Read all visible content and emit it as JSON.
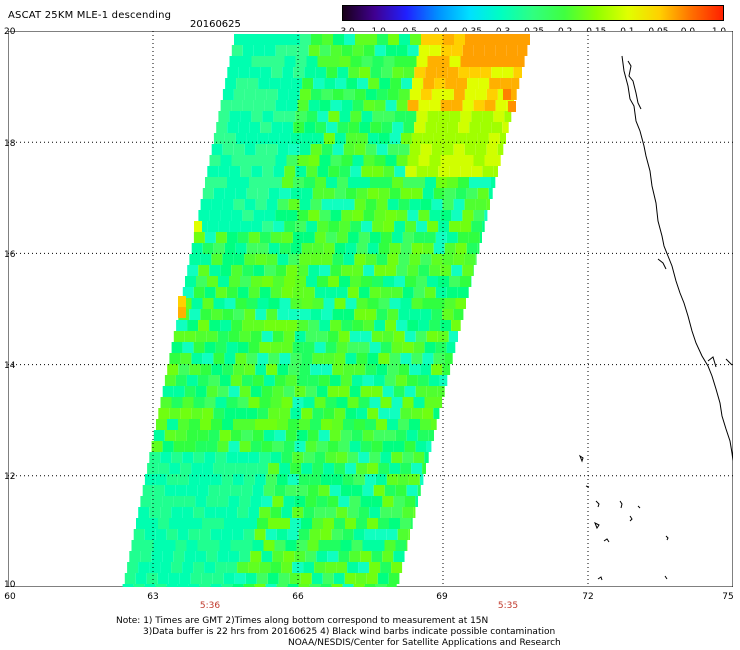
{
  "header": {
    "title": "ASCAT 25KM MLE-1 descending",
    "date": "20160625"
  },
  "colorbar": {
    "labels": [
      "-3.0",
      "-1.0",
      "-0.5",
      "-0.4",
      "-0.35",
      "-0.3",
      "-0.25",
      "-0.2",
      "-0.15",
      "-0.1",
      "-0.05",
      "0.0",
      "1.0"
    ],
    "colors": [
      "#180018",
      "#400090",
      "#2020ff",
      "#0090ff",
      "#00e0ff",
      "#00ffc0",
      "#30ff80",
      "#40ff40",
      "#90ff00",
      "#e0ff00",
      "#ffd000",
      "#ff7000",
      "#ff2000"
    ]
  },
  "axes": {
    "lat_ticks": [
      "20",
      "18",
      "16",
      "14",
      "12",
      "10"
    ],
    "lon_ticks": [
      "60",
      "63",
      "66",
      "69",
      "72",
      "75"
    ],
    "lat_range": [
      10,
      20
    ],
    "lon_range": [
      60,
      75
    ]
  },
  "times": [
    "5:36",
    "5:35"
  ],
  "notes": {
    "line1": "Note: 1) Times are GMT 2)Times along bottom correspond to measurement at 15N",
    "line2": "3)Data buffer is 22 hrs from 20160625 4) Black wind barbs indicate possible contamination",
    "line3": "NOAA/NESDIS/Center for Satellite Applications and Research"
  }
}
